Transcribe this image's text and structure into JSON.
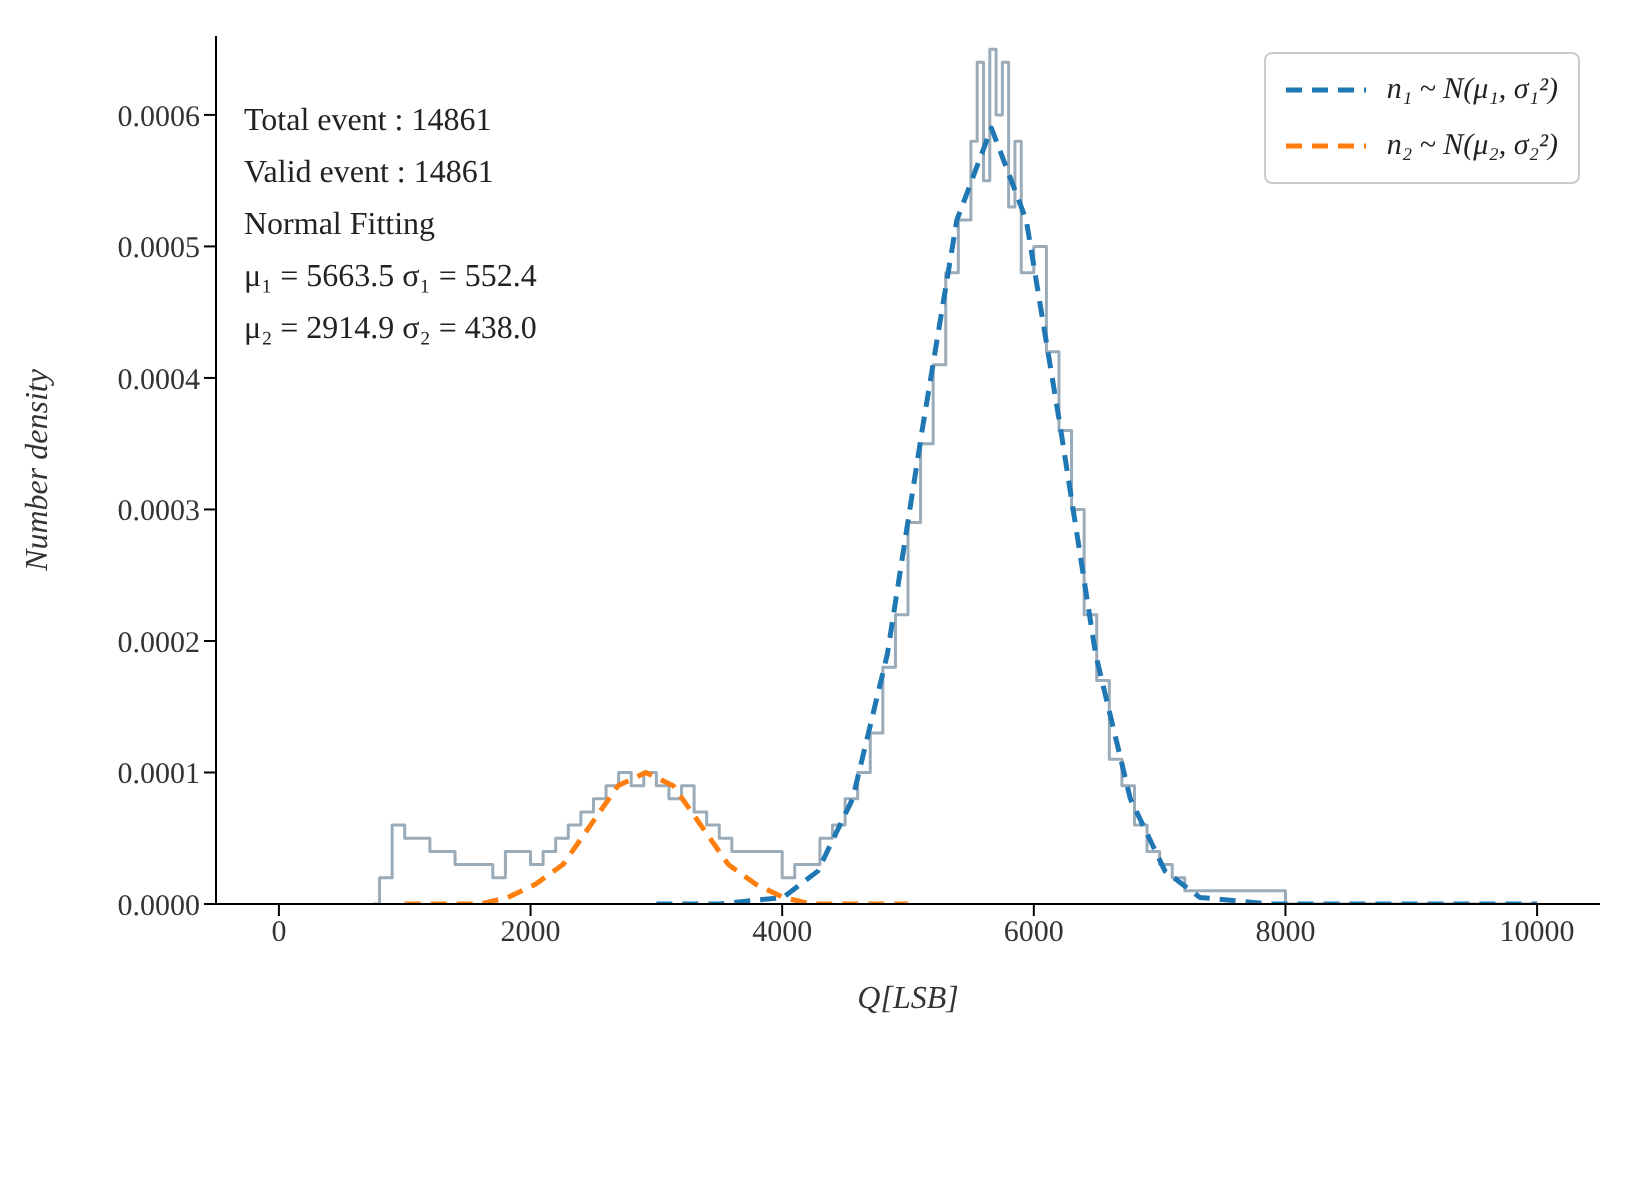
{
  "chart_data": {
    "type": "step",
    "xlabel": "Q[LSB]",
    "ylabel": "Number density",
    "xlim": [
      -500,
      10500
    ],
    "xticks": [
      0,
      2000,
      4000,
      6000,
      8000,
      10000
    ],
    "ylim": [
      0,
      0.00066
    ],
    "yticks": [
      {
        "value": 0,
        "label": "0.0000"
      },
      {
        "value": 0.0001,
        "label": "0.0001"
      },
      {
        "value": 0.0002,
        "label": "0.0002"
      },
      {
        "value": 0.0003,
        "label": "0.0003"
      },
      {
        "value": 0.0004,
        "label": "0.0004"
      },
      {
        "value": 0.0005,
        "label": "0.0005"
      },
      {
        "value": 0.0006,
        "label": "0.0006"
      }
    ],
    "grid": false,
    "legend": "top right",
    "marker": "none",
    "annotations": [
      "Total event : 14861",
      "Valid event : 14861",
      "Normal Fitting",
      "μ₁ = 5663.5 σ₁ = 552.4",
      "μ₂ = 2914.9 σ₂ = 438.0"
    ],
    "series": [
      {
        "color": "#9aabb9",
        "line_style": "solid",
        "x": [
          750,
          800,
          900,
          1000,
          1100,
          1200,
          1300,
          1400,
          1500,
          1600,
          1700,
          1800,
          1900,
          2000,
          2100,
          2200,
          2300,
          2400,
          2500,
          2600,
          2700,
          2800,
          2900,
          3000,
          3100,
          3200,
          3300,
          3400,
          3500,
          3600,
          3700,
          3800,
          3900,
          4000,
          4100,
          4200,
          4300,
          4400,
          4500,
          4600,
          4700,
          4800,
          4900,
          5000,
          5100,
          5200,
          5300,
          5400,
          5500,
          5550,
          5600,
          5650,
          5700,
          5750,
          5800,
          5850,
          5900,
          6000,
          6100,
          6200,
          6300,
          6400,
          6500,
          6600,
          6700,
          6800,
          6900,
          7000,
          7100,
          7200,
          7400,
          7600,
          8000,
          8500,
          9000,
          9500,
          10000
        ],
        "values": [
          0,
          2e-05,
          6e-05,
          5e-05,
          5e-05,
          4e-05,
          4e-05,
          3e-05,
          3e-05,
          3e-05,
          2e-05,
          4e-05,
          4e-05,
          3e-05,
          4e-05,
          5e-05,
          6e-05,
          7e-05,
          8e-05,
          9e-05,
          0.0001,
          9e-05,
          0.0001,
          9e-05,
          8e-05,
          9e-05,
          7e-05,
          6e-05,
          5e-05,
          4e-05,
          4e-05,
          4e-05,
          4e-05,
          2e-05,
          3e-05,
          3e-05,
          5e-05,
          6e-05,
          8e-05,
          0.0001,
          0.00013,
          0.00018,
          0.00022,
          0.00029,
          0.00035,
          0.00041,
          0.00048,
          0.00052,
          0.00058,
          0.00064,
          0.00055,
          0.00065,
          0.0006,
          0.00064,
          0.00053,
          0.00058,
          0.00048,
          0.0005,
          0.00042,
          0.00036,
          0.0003,
          0.00022,
          0.00017,
          0.00011,
          9e-05,
          6e-05,
          4e-05,
          3e-05,
          2e-05,
          1e-05,
          1e-05,
          1e-05,
          0,
          0,
          0,
          0,
          0
        ]
      },
      {
        "type": "line",
        "name": "n₁ ~ N(μ₁, σ₁²)",
        "color": "#1f77b4",
        "line_style": "dashed",
        "x": [
          3000,
          3500,
          4007,
          4283,
          4560,
          4836,
          5112,
          5388,
          5663,
          5940,
          6215,
          6491,
          6767,
          7043,
          7320,
          7870,
          10000
        ],
        "values": [
          0,
          0,
          5e-06,
          2.5e-05,
          8e-05,
          0.00019,
          0.00036,
          0.00052,
          0.00059,
          0.00052,
          0.00036,
          0.00019,
          8e-05,
          2.5e-05,
          5e-06,
          0,
          0
        ]
      },
      {
        "type": "line",
        "name": "n₂ ~ N(μ₂, σ₂²)",
        "color": "#ff7f0e",
        "line_style": "dashed",
        "x": [
          1000,
          1601,
          1820,
          2039,
          2258,
          2477,
          2696,
          2915,
          3134,
          3353,
          3572,
          3791,
          4010,
          4229,
          5000
        ],
        "values": [
          0,
          0,
          5e-06,
          1.5e-05,
          3e-05,
          6e-05,
          9e-05,
          0.0001,
          9e-05,
          6e-05,
          3e-05,
          1.5e-05,
          5e-06,
          0,
          0
        ]
      }
    ]
  }
}
